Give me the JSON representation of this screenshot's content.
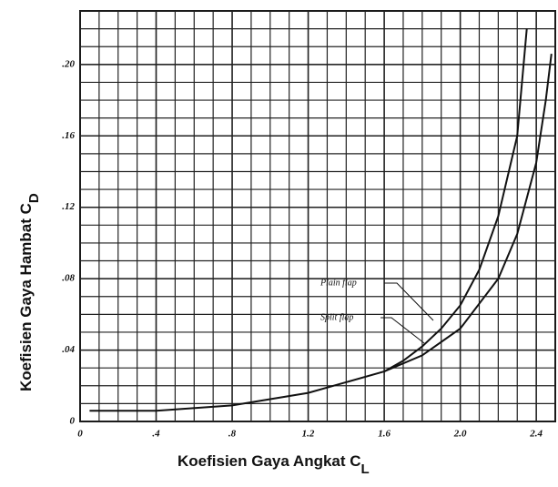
{
  "chart_data": {
    "type": "line",
    "x_label": "Koefisien Gaya Angkat  C",
    "x_label_sub": "L",
    "y_label": "Koefisien Gaya Hambat C",
    "y_label_sub": "D",
    "annotations": [
      "Plain flap",
      "Split flap"
    ],
    "xlim": [
      0,
      2.5
    ],
    "ylim": [
      0,
      0.23
    ],
    "xticks": [
      0,
      {
        "value": 0.4,
        "label": ".4"
      },
      {
        "value": 0.8,
        "label": ".8"
      },
      1.2,
      1.6,
      {
        "value": 2.0,
        "label": "2.0"
      },
      2.4
    ],
    "yticks": [
      0,
      {
        "value": 0.04,
        "label": ".04"
      },
      {
        "value": 0.08,
        "label": ".08"
      },
      {
        "value": 0.12,
        "label": ".12"
      },
      {
        "value": 0.16,
        "label": ".16"
      },
      {
        "value": 0.2,
        "label": ".20"
      }
    ],
    "grid": true,
    "series": [
      {
        "name": "Plain flap",
        "color": "#111111",
        "x": [
          1.6,
          1.7,
          1.8,
          1.9,
          2.0,
          2.1,
          2.2,
          2.3,
          2.35
        ],
        "values": [
          0.028,
          0.034,
          0.042,
          0.052,
          0.065,
          0.085,
          0.115,
          0.16,
          0.22
        ]
      },
      {
        "name": "Split flap",
        "color": "#111111",
        "x": [
          0.05,
          0.4,
          0.8,
          1.2,
          1.6,
          1.8,
          2.0,
          2.2,
          2.3,
          2.4,
          2.45,
          2.48
        ],
        "values": [
          0.006,
          0.006,
          0.009,
          0.016,
          0.028,
          0.037,
          0.052,
          0.08,
          0.105,
          0.145,
          0.18,
          0.206
        ]
      }
    ]
  }
}
